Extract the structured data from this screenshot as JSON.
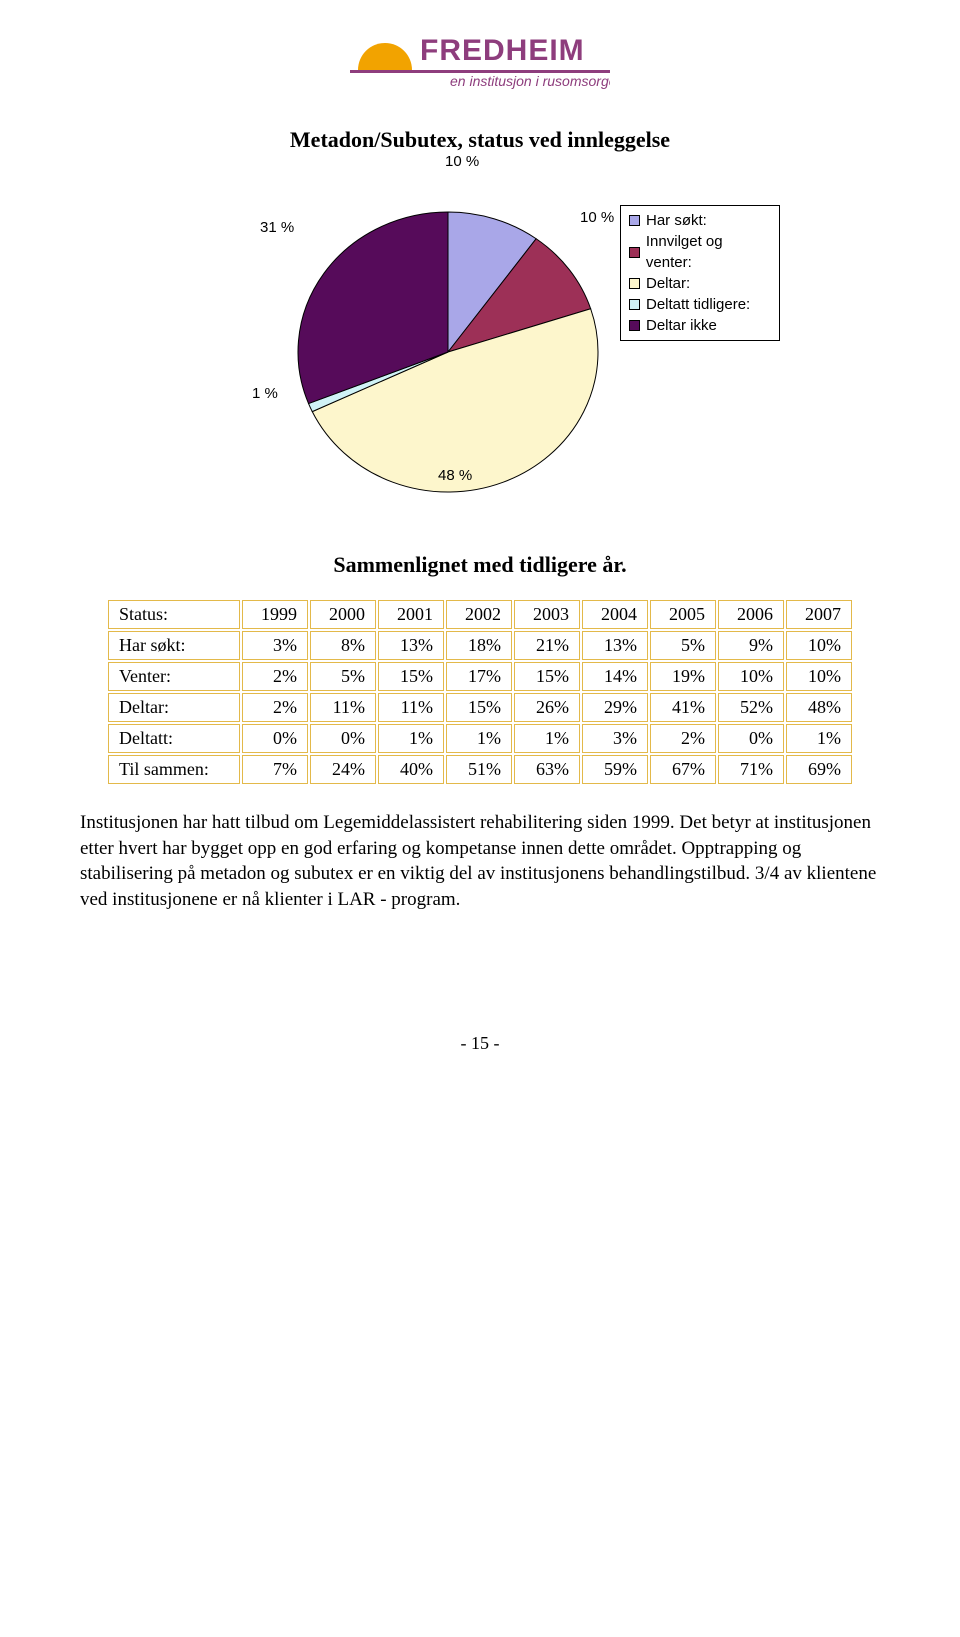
{
  "logo": {
    "brand_main": "FREDHEIM",
    "brand_sub": "en institusjon i rusomsorgen",
    "sun_color": "#f2a300",
    "text_color": "#8e3d7d",
    "divider_color": "#8e3d7d"
  },
  "pie_chart": {
    "title": "Metadon/Subutex, status ved innleggelse",
    "top_label": "10 %",
    "slices": [
      {
        "label": "Har søkt:",
        "value": 10,
        "color": "#a9a7e8",
        "display": "10 %"
      },
      {
        "label": "Innvilget og venter:",
        "value": 10,
        "color": "#9d3057",
        "display": "10 %"
      },
      {
        "label": "Deltar:",
        "value": 48,
        "color": "#fdf6cc",
        "display": "48 %"
      },
      {
        "label": "Deltatt tidligere:",
        "value": 1,
        "color": "#d0f2f6",
        "display": "1 %"
      },
      {
        "label": "Deltar ikke",
        "value": 31,
        "color": "#560b5a",
        "display": "31 %"
      }
    ],
    "stroke": "#000000",
    "legend_border": "#000000",
    "pct_font": "Arial"
  },
  "section_heading": "Sammenlignet med tidligere år.",
  "table": {
    "border_color": "#e3b94a",
    "years": [
      "1999",
      "2000",
      "2001",
      "2002",
      "2003",
      "2004",
      "2005",
      "2006",
      "2007"
    ],
    "rows": [
      {
        "label": "Status:",
        "cells": [
          "",
          "",
          "",
          "",
          "",
          "",
          "",
          "",
          ""
        ]
      },
      {
        "label": "Har søkt:",
        "cells": [
          "3%",
          "8%",
          "13%",
          "18%",
          "21%",
          "13%",
          "5%",
          "9%",
          "10%"
        ]
      },
      {
        "label": "Venter:",
        "cells": [
          "2%",
          "5%",
          "15%",
          "17%",
          "15%",
          "14%",
          "19%",
          "10%",
          "10%"
        ]
      },
      {
        "label": "Deltar:",
        "cells": [
          "2%",
          "11%",
          "11%",
          "15%",
          "26%",
          "29%",
          "41%",
          "52%",
          "48%"
        ]
      },
      {
        "label": "Deltatt:",
        "cells": [
          "0%",
          "0%",
          "1%",
          "1%",
          "1%",
          "3%",
          "2%",
          "0%",
          "1%"
        ]
      },
      {
        "label": "Til sammen:",
        "cells": [
          "7%",
          "24%",
          "40%",
          "51%",
          "63%",
          "59%",
          "67%",
          "71%",
          "69%"
        ]
      }
    ]
  },
  "body_text": "Institusjonen har hatt tilbud om Legemiddelassistert rehabilitering siden 1999. Det betyr at institusjonen etter hvert har bygget opp en god erfaring og kompetanse innen dette området. Opptrapping og stabilisering på metadon og subutex er en viktig del av institusjonens behandlingstilbud. 3/4 av klientene ved institusjonene er nå klienter i LAR - program.",
  "page_number": "- 15 -"
}
